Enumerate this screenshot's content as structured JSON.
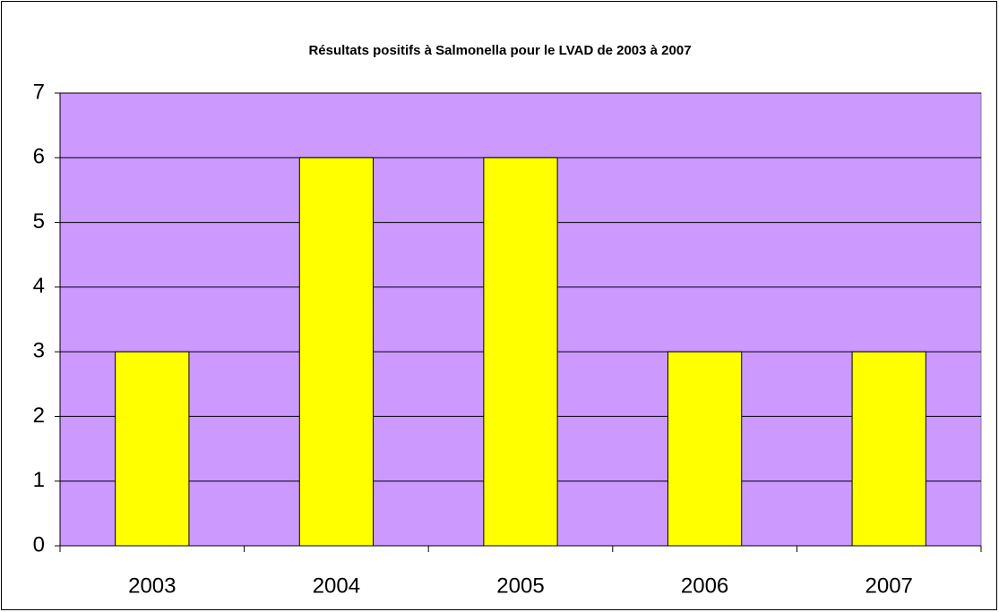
{
  "chart_data": {
    "type": "bar",
    "title": "Résultats positifs à Salmonella pour le LVAD de 2003 à 2007",
    "categories": [
      "2003",
      "2004",
      "2005",
      "2006",
      "2007"
    ],
    "values": [
      3,
      6,
      6,
      3,
      3
    ],
    "color": "#ffff00",
    "plot_background": "#cc99ff",
    "ylim": [
      0,
      7
    ],
    "yticks": [
      0,
      1,
      2,
      3,
      4,
      5,
      6,
      7
    ],
    "grid": true
  }
}
